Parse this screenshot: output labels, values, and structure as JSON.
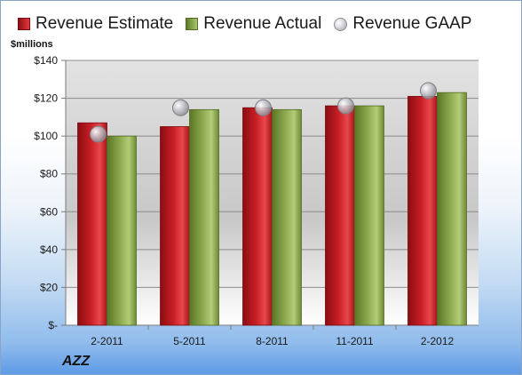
{
  "legend": {
    "estimate": "Revenue Estimate",
    "actual": "Revenue Actual",
    "gaap": "Revenue GAAP"
  },
  "units_label": "$millions",
  "company": "AZZ",
  "colors": {
    "estimate": "#c81e24",
    "actual": "#8eaa4f",
    "gaap": "#c8c8cf",
    "plot_bg_top": "#e3e3e3",
    "plot_bg_bottom": "#ffffff"
  },
  "chart_data": {
    "type": "bar",
    "categories": [
      "2-2011",
      "5-2011",
      "8-2011",
      "11-2011",
      "2-2012"
    ],
    "series": [
      {
        "name": "Revenue Estimate",
        "values": [
          107,
          105,
          115,
          116,
          121
        ]
      },
      {
        "name": "Revenue Actual",
        "values": [
          100,
          114,
          114,
          116,
          123
        ]
      },
      {
        "name": "Revenue GAAP",
        "values": [
          101,
          115,
          115,
          116,
          124
        ],
        "marker": "circle"
      }
    ],
    "ylabel": "$millions",
    "ylim": [
      0,
      140
    ],
    "yticks": [
      0,
      20,
      40,
      60,
      80,
      100,
      120,
      140
    ],
    "ytick_labels": [
      "$-",
      "$20",
      "$40",
      "$60",
      "$80",
      "$100",
      "$120",
      "$140"
    ],
    "grid": true,
    "legend_position": "top"
  }
}
